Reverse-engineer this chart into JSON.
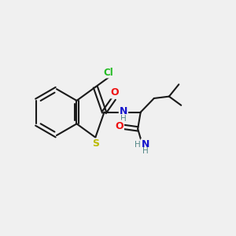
{
  "background_color": "#f0f0f0",
  "colors": {
    "bond": "#1a1a1a",
    "N": "#1515cc",
    "O": "#ee1111",
    "S": "#bbbb00",
    "Cl": "#22bb22",
    "H": "#558888"
  },
  "bond_lw": 1.5,
  "figsize": [
    3.0,
    3.0
  ],
  "dpi": 100
}
